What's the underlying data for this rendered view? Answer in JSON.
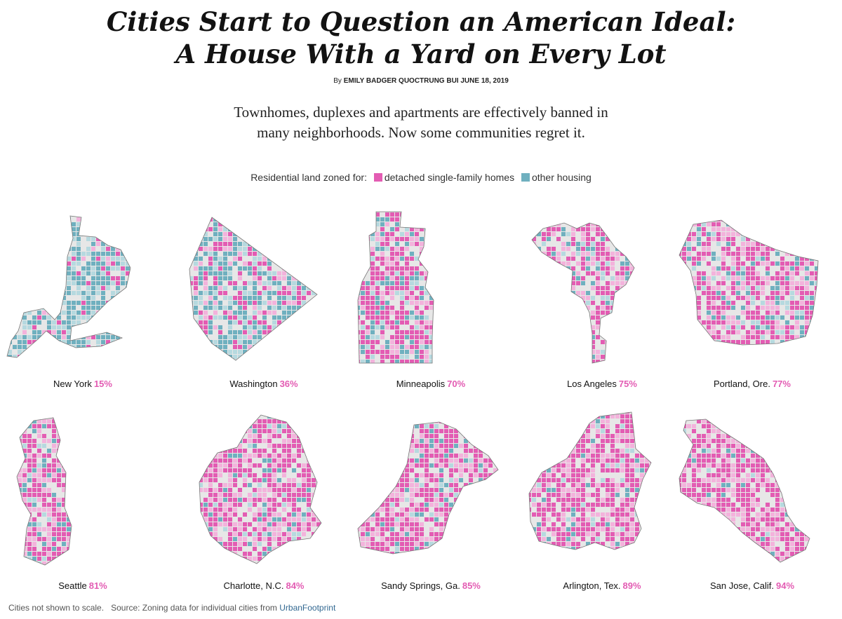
{
  "header": {
    "title_line1": "Cities Start to Question an American Ideal:",
    "title_line2": "A House With a Yard on Every Lot",
    "byline_prefix": "By",
    "authors": "Emily Badger Quoctrung Bui",
    "date": "June 18, 2019",
    "dek_line1": "Townhomes, duplexes and apartments are effectively banned in",
    "dek_line2": "many neighborhoods. Now some communities regret it."
  },
  "legend": {
    "label": "Residential land zoned for:",
    "items": [
      {
        "label": "detached single-family homes",
        "color": "#e35cb3"
      },
      {
        "label": "other housing",
        "color": "#6fb0bf"
      }
    ]
  },
  "colors": {
    "single_family": "#e35cb3",
    "single_family_light": "#f3b3dc",
    "other_housing": "#6fb0bf",
    "other_light": "#b6d9df",
    "nonresidential": "#e7e7e7",
    "water": "#d2d2d2",
    "outline": "#777777",
    "pct_color": "#e35cb3"
  },
  "cities": [
    {
      "name": "New York",
      "pct": "15%",
      "share": 0.15
    },
    {
      "name": "Washington",
      "pct": "36%",
      "share": 0.36
    },
    {
      "name": "Minneapolis",
      "pct": "70%",
      "share": 0.7
    },
    {
      "name": "Los Angeles",
      "pct": "75%",
      "share": 0.75
    },
    {
      "name": "Portland, Ore.",
      "pct": "77%",
      "share": 0.77
    },
    {
      "name": "Seattle",
      "pct": "81%",
      "share": 0.81
    },
    {
      "name": "Charlotte, N.C.",
      "pct": "84%",
      "share": 0.84
    },
    {
      "name": "Sandy Springs, Ga.",
      "pct": "85%",
      "share": 0.85
    },
    {
      "name": "Arlington, Tex.",
      "pct": "89%",
      "share": 0.89
    },
    {
      "name": "San Jose, Calif.",
      "pct": "94%",
      "share": 0.94
    }
  ],
  "footer": {
    "note": "Cities not shown to scale.",
    "source_prefix": "Source: Zoning data for individual cities from",
    "source_link": "UrbanFootprint"
  }
}
